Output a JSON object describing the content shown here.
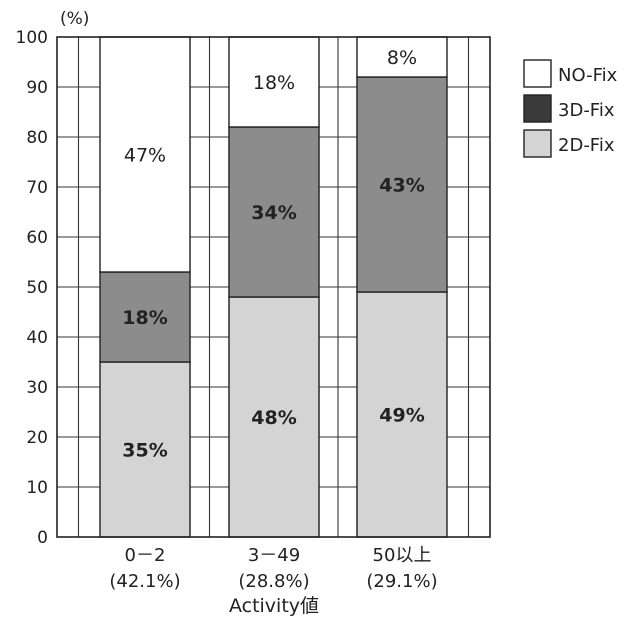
{
  "chart_data": {
    "type": "bar",
    "stacked": true,
    "unit_label": "(%)",
    "xlabel": "Activity値",
    "ylim": [
      0,
      100
    ],
    "yticks": [
      "0",
      "10",
      "20",
      "30",
      "40",
      "50",
      "60",
      "70",
      "80",
      "90",
      "100"
    ],
    "grid": true,
    "legend_position": "right",
    "categories": [
      {
        "label": "0－2",
        "sub": "(42.1%)"
      },
      {
        "label": "3－49",
        "sub": "(28.8%)"
      },
      {
        "label": "50以上",
        "sub": "(29.1%)"
      }
    ],
    "series": [
      {
        "name": "2D-Fix",
        "color": "#d4d4d4",
        "values": [
          35,
          48,
          49
        ],
        "labels": [
          "35%",
          "48%",
          "49%"
        ],
        "bold": true
      },
      {
        "name": "3D-Fix",
        "color": "#8c8c8c",
        "values": [
          18,
          34,
          43
        ],
        "labels": [
          "18%",
          "34%",
          "43%"
        ],
        "bold": true
      },
      {
        "name": "NO-Fix",
        "color": "#ffffff",
        "values": [
          47,
          18,
          8
        ],
        "labels": [
          "47%",
          "18%",
          "8%"
        ],
        "bold": false
      }
    ],
    "legend_order": [
      "NO-Fix",
      "3D-Fix",
      "2D-Fix"
    ],
    "legend_swatch_colors": {
      "NO-Fix": "#ffffff",
      "3D-Fix": "#3a3a3a",
      "2D-Fix": "#d4d4d4"
    }
  }
}
